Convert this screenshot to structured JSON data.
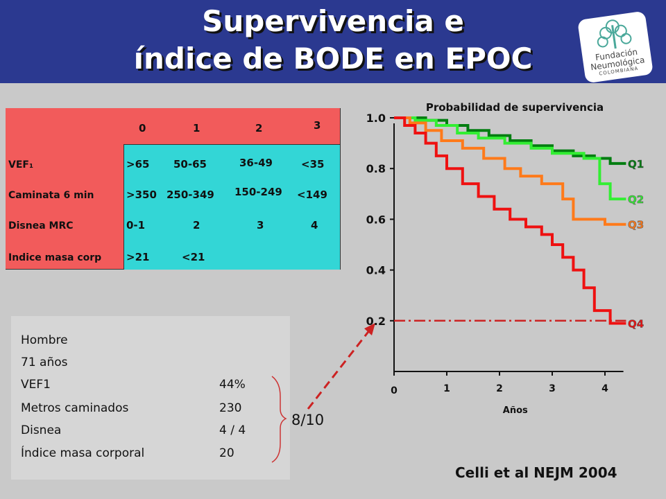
{
  "title": {
    "line1": "Supervivencia e",
    "line2": "índice de BODE en EPOC"
  },
  "logo": {
    "line1": "Fundación",
    "line2": "Neumológica",
    "line3": "COLOMBIANA"
  },
  "bode_table": {
    "points": [
      "0",
      "1",
      "2",
      "3"
    ],
    "rows": [
      {
        "label": "VEF₁",
        "values": [
          ">65",
          "50-65",
          "36-49",
          "<35"
        ]
      },
      {
        "label": "Caminata 6 min",
        "values": [
          ">350",
          "250-349",
          "150-249",
          "<149"
        ]
      },
      {
        "label": "Disnea MRC",
        "values": [
          "0-1",
          "2",
          "3",
          "4"
        ]
      },
      {
        "label": "Indice masa corp",
        "values": [
          ">21",
          "<21",
          "",
          ""
        ]
      }
    ]
  },
  "patient_case": {
    "sex": "Hombre",
    "age": "71 años",
    "items": [
      {
        "label": "VEF1",
        "value": "44%"
      },
      {
        "label": "Metros caminados",
        "value": "230"
      },
      {
        "label": "Disnea",
        "value": "4 / 4"
      },
      {
        "label": "Índice masa corporal",
        "value": "20"
      }
    ],
    "total_score": "8/10"
  },
  "citation": "Celli et al NEJM 2004",
  "colors": {
    "header": "#2b3990",
    "table_red": "#f25b5b",
    "table_cyan": "#33d6d6",
    "arrow": "#cc2222"
  },
  "chart_data": {
    "type": "line",
    "title": "Probabilidad de supervivencia",
    "xlabel": "Años",
    "ylabel": "",
    "xlim": [
      0,
      4.35
    ],
    "ylim": [
      0.0,
      1.0
    ],
    "x_ticks": [
      "0",
      "1",
      "2",
      "3",
      "4"
    ],
    "y_ticks": [
      "1.0",
      "0.8",
      "0.6",
      "0.4",
      "0.2"
    ],
    "reference_line": {
      "y": 0.2,
      "style": "dash-dot",
      "color": "#cc2222"
    },
    "series": [
      {
        "name": "Q1",
        "color": "#007d10",
        "x": [
          0,
          0.6,
          0.6,
          1.0,
          1.0,
          1.4,
          1.4,
          1.8,
          1.8,
          2.2,
          2.2,
          2.6,
          2.6,
          3.0,
          3.0,
          3.4,
          3.4,
          3.8,
          3.8,
          4.1,
          4.1,
          4.4
        ],
        "y": [
          1.0,
          1.0,
          0.99,
          0.99,
          0.97,
          0.97,
          0.95,
          0.95,
          0.93,
          0.93,
          0.91,
          0.91,
          0.89,
          0.89,
          0.87,
          0.87,
          0.85,
          0.85,
          0.84,
          0.84,
          0.82,
          0.82
        ]
      },
      {
        "name": "Q2",
        "color": "#33ee33",
        "x": [
          0,
          0.4,
          0.4,
          0.8,
          0.8,
          1.2,
          1.2,
          1.6,
          1.6,
          2.1,
          2.1,
          2.6,
          2.6,
          3.0,
          3.0,
          3.6,
          3.6,
          3.9,
          3.9,
          4.1,
          4.1,
          4.4
        ],
        "y": [
          1.0,
          1.0,
          0.99,
          0.99,
          0.97,
          0.97,
          0.94,
          0.94,
          0.92,
          0.92,
          0.9,
          0.9,
          0.88,
          0.88,
          0.86,
          0.86,
          0.84,
          0.84,
          0.74,
          0.74,
          0.68,
          0.68
        ]
      },
      {
        "name": "Q3",
        "color": "#ff7a1a",
        "x": [
          0,
          0.3,
          0.3,
          0.6,
          0.6,
          0.9,
          0.9,
          1.3,
          1.3,
          1.7,
          1.7,
          2.1,
          2.1,
          2.4,
          2.4,
          2.8,
          2.8,
          3.2,
          3.2,
          3.4,
          3.4,
          4.0,
          4.0,
          4.4
        ],
        "y": [
          1.0,
          1.0,
          0.98,
          0.98,
          0.95,
          0.95,
          0.91,
          0.91,
          0.88,
          0.88,
          0.84,
          0.84,
          0.8,
          0.8,
          0.77,
          0.77,
          0.74,
          0.74,
          0.68,
          0.68,
          0.6,
          0.6,
          0.58,
          0.58
        ]
      },
      {
        "name": "Q4",
        "color": "#ee1111",
        "x": [
          0,
          0.2,
          0.2,
          0.4,
          0.4,
          0.6,
          0.6,
          0.8,
          0.8,
          1.0,
          1.0,
          1.3,
          1.3,
          1.6,
          1.6,
          1.9,
          1.9,
          2.2,
          2.2,
          2.5,
          2.5,
          2.8,
          2.8,
          3.0,
          3.0,
          3.2,
          3.2,
          3.4,
          3.4,
          3.6,
          3.6,
          3.8,
          3.8,
          4.1,
          4.1,
          4.4
        ],
        "y": [
          1.0,
          1.0,
          0.97,
          0.97,
          0.94,
          0.94,
          0.9,
          0.9,
          0.85,
          0.85,
          0.8,
          0.8,
          0.74,
          0.74,
          0.69,
          0.69,
          0.64,
          0.64,
          0.6,
          0.6,
          0.57,
          0.57,
          0.54,
          0.54,
          0.5,
          0.5,
          0.45,
          0.45,
          0.4,
          0.4,
          0.33,
          0.33,
          0.24,
          0.24,
          0.19,
          0.19
        ]
      }
    ]
  }
}
